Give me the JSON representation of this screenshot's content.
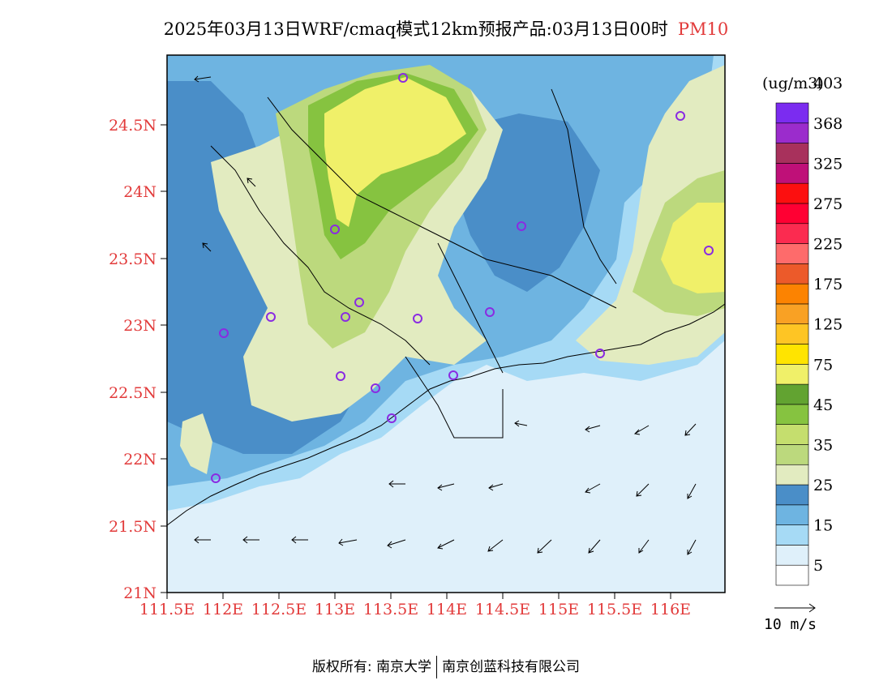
{
  "title": {
    "main": "2025年03月13日WRF/cmaq模式12km预报产品:03月13日00时",
    "variable": "PM10"
  },
  "axes": {
    "lat_labels": [
      "24.5N",
      "24N",
      "23.5N",
      "23N",
      "22.5N",
      "22N",
      "21.5N",
      "21N"
    ],
    "lon_labels": [
      "111.5E",
      "112E",
      "112.5E",
      "113E",
      "113.5E",
      "114E",
      "114.5E",
      "115E",
      "115.5E",
      "116E"
    ],
    "lat_range": [
      21,
      25
    ],
    "lon_range": [
      111.5,
      116.5
    ]
  },
  "legend": {
    "unit": "(ug/m3)",
    "colors": [
      "#ffffff",
      "#dff0fa",
      "#a6daf5",
      "#6eb4e1",
      "#4a8ec8",
      "#e2ebc0",
      "#bcd97d",
      "#c5de6e",
      "#86c340",
      "#62a331",
      "#f0f069",
      "#ffe400",
      "#fec524",
      "#f9a124",
      "#fc8301",
      "#ec5a2a",
      "#fe6b6b",
      "#fb2b50",
      "#ff0033",
      "#fc0f0f",
      "#bf1078",
      "#a8315c",
      "#9b2ccc",
      "#7b2cf0"
    ],
    "labels": [
      "5",
      "15",
      "25",
      "35",
      "45",
      "75",
      "125",
      "175",
      "225",
      "275",
      "325",
      "368",
      "403"
    ]
  },
  "wind_reference": "10 m/s",
  "footer": {
    "left": "版权所有: 南京大学",
    "right": "南京创蓝科技有限公司"
  }
}
